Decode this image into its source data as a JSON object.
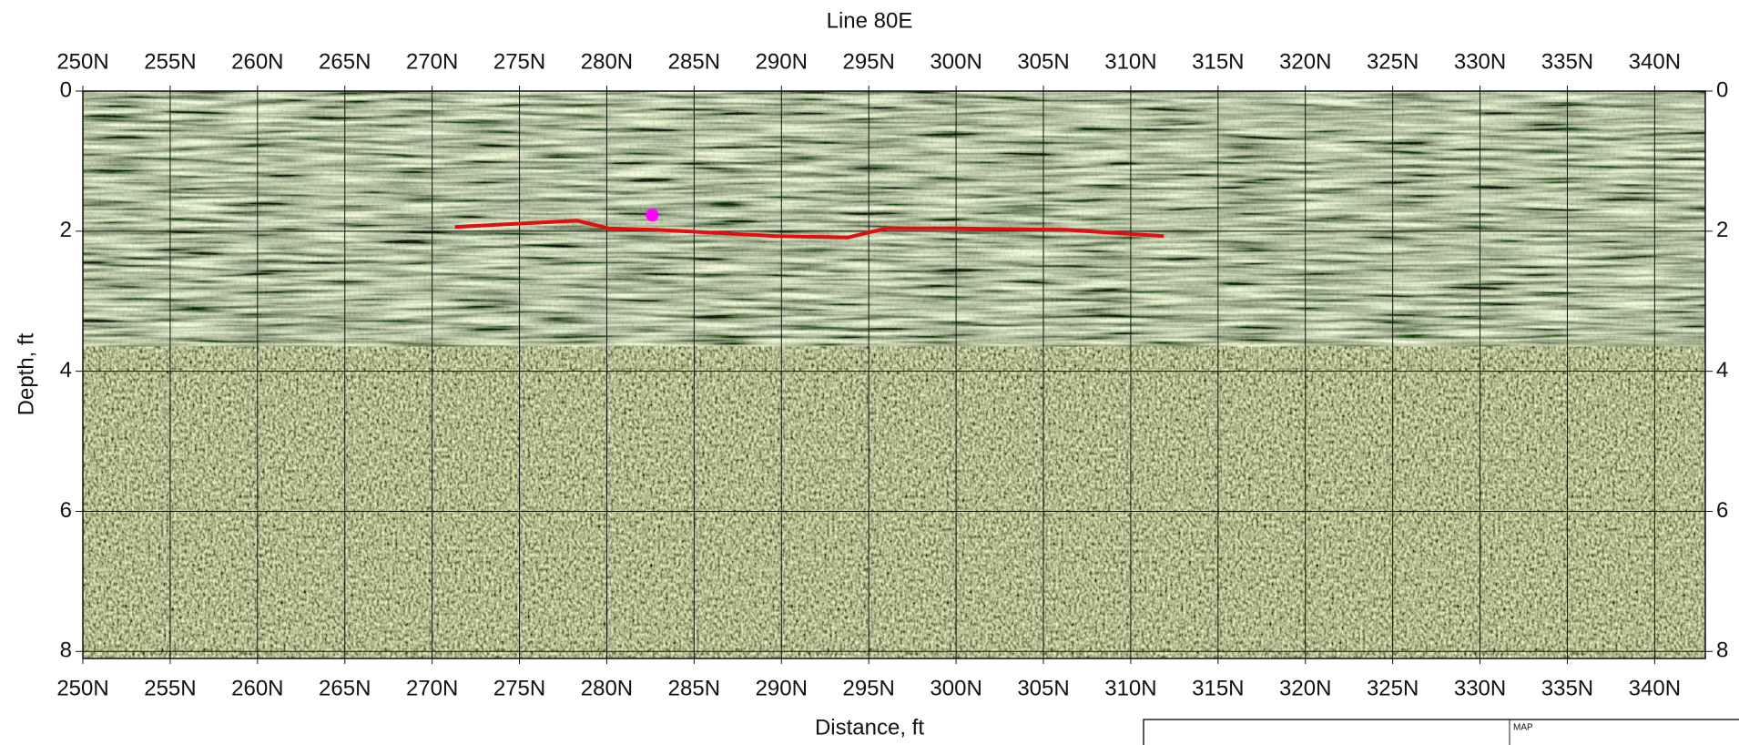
{
  "chart_data": {
    "type": "radargram",
    "title": "Line 80E",
    "x_label": "Distance, ft",
    "y_label": "Depth, ft",
    "xlim": [
      250,
      342.9
    ],
    "ylim": [
      0,
      8.1
    ],
    "xticks": [
      {
        "value": 250,
        "label": "250N"
      },
      {
        "value": 255,
        "label": "255N"
      },
      {
        "value": 260,
        "label": "260N"
      },
      {
        "value": 265,
        "label": "265N"
      },
      {
        "value": 270,
        "label": "270N"
      },
      {
        "value": 275,
        "label": "275N"
      },
      {
        "value": 280,
        "label": "280N"
      },
      {
        "value": 285,
        "label": "285N"
      },
      {
        "value": 290,
        "label": "290N"
      },
      {
        "value": 295,
        "label": "295N"
      },
      {
        "value": 300,
        "label": "300N"
      },
      {
        "value": 305,
        "label": "305N"
      },
      {
        "value": 310,
        "label": "310N"
      },
      {
        "value": 315,
        "label": "315N"
      },
      {
        "value": 320,
        "label": "320N"
      },
      {
        "value": 325,
        "label": "325N"
      },
      {
        "value": 330,
        "label": "330N"
      },
      {
        "value": 335,
        "label": "335N"
      },
      {
        "value": 340,
        "label": "340N"
      }
    ],
    "yticks": [
      0,
      2,
      4,
      6,
      8
    ],
    "y_inverted": true,
    "grid": true,
    "series": [
      {
        "color": "#e01010",
        "x": [
          271.3,
          278.3,
          280.1,
          282.8,
          285.9,
          289.7,
          293.8,
          296.0,
          299.9,
          306.2,
          311.9
        ],
        "values": [
          1.94,
          1.85,
          1.96,
          1.98,
          2.02,
          2.07,
          2.09,
          1.96,
          1.96,
          1.98,
          2.07
        ]
      }
    ],
    "points": {
      "color": "#ff00ff",
      "x": [
        282.6
      ],
      "values": [
        1.77
      ]
    },
    "map_label": "MAP"
  }
}
